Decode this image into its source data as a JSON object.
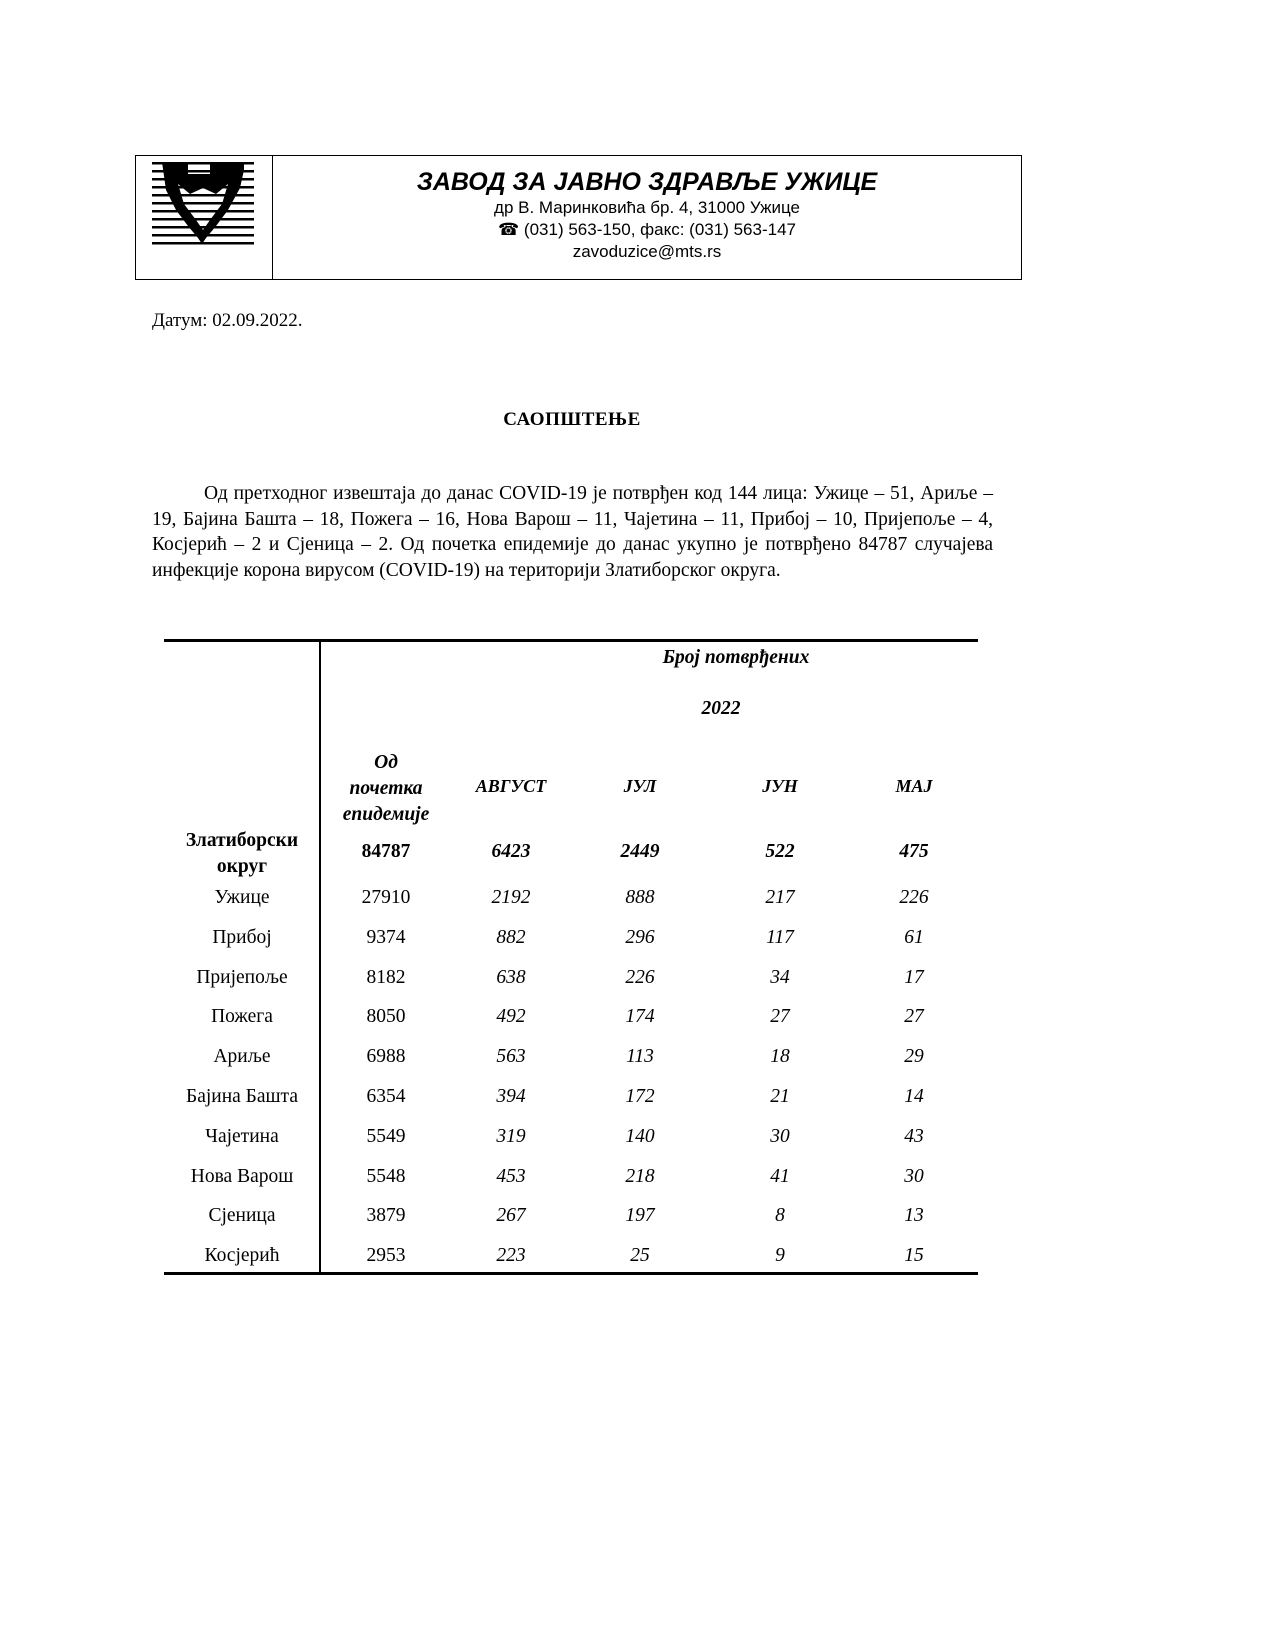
{
  "header": {
    "institution": "ЗАВОД ЗА ЈАВНО ЗДРАВЉЕ УЖИЦЕ",
    "address": "др В. Маринковића бр. 4, 31000 Ужице",
    "phone_icon": "telephone-icon",
    "phone_glyph": "☎",
    "phone": "(031) 563-150, факс: (031) 563-147",
    "email": "zavoduzice@mts.rs"
  },
  "date": "Датум: 02.09.2022.",
  "heading": "САОПШТЕЊЕ",
  "paragraph": "Од претходног извештаја до данас COVID-19 је потврђен код 144 лица: Ужице – 51, Ариље – 19, Бајина Башта – 18, Пожега – 16, Нова Варош – 11, Чајетина – 11, Прибој – 10, Пријепоље – 4, Косјерић – 2 и Сјеница – 2. Од почетка епидемије до данас укупно је потврђено 84787 случајева инфекције корона вирусом (COVID-19) на територији Златиборског округа.",
  "table": {
    "group_header": "Број потврђених",
    "year": "2022",
    "col_first": [
      "Од",
      "почетка",
      "епидемије"
    ],
    "columns": [
      "АВГУСТ",
      "ЈУЛ",
      "ЈУН",
      "МАЈ"
    ],
    "total": {
      "label": [
        "Златиборски",
        "округ"
      ],
      "values": [
        "84787",
        "6423",
        "2449",
        "522",
        "475"
      ]
    },
    "rows": [
      {
        "label": "Ужице",
        "values": [
          "27910",
          "2192",
          "888",
          "217",
          "226"
        ]
      },
      {
        "label": "Прибој",
        "values": [
          "9374",
          "882",
          "296",
          "117",
          "61"
        ]
      },
      {
        "label": "Пријепоље",
        "values": [
          "8182",
          "638",
          "226",
          "34",
          "17"
        ]
      },
      {
        "label": "Пожега",
        "values": [
          "8050",
          "492",
          "174",
          "27",
          "27"
        ]
      },
      {
        "label": "Ариље",
        "values": [
          "6988",
          "563",
          "113",
          "18",
          "29"
        ]
      },
      {
        "label": "Бајина Башта",
        "values": [
          "6354",
          "394",
          "172",
          "21",
          "14"
        ]
      },
      {
        "label": "Чајетина",
        "values": [
          "5549",
          "319",
          "140",
          "30",
          "43"
        ]
      },
      {
        "label": "Нова Варош",
        "values": [
          "5548",
          "453",
          "218",
          "41",
          "30"
        ]
      },
      {
        "label": "Сјеница",
        "values": [
          "3879",
          "267",
          "197",
          "8",
          "13"
        ]
      },
      {
        "label": "Косјерић",
        "values": [
          "2953",
          "223",
          "25",
          "9",
          "15"
        ]
      }
    ]
  }
}
